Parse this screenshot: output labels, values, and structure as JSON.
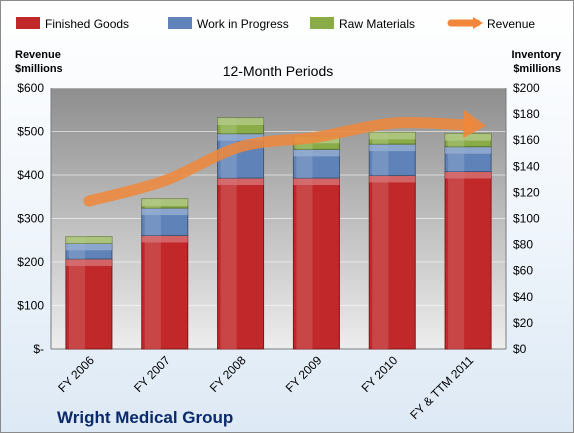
{
  "chart_data": {
    "type": "bar",
    "stacked": true,
    "subtitle": "12-Month Periods",
    "company": "Wright Medical Group",
    "categories": [
      "FY 2006",
      "FY 2007",
      "FY 2008",
      "FY 2009",
      "FY 2010",
      "FY & TTM 2011"
    ],
    "left_axis": {
      "title_line1": "Revenue",
      "title_line2": "$millions",
      "ylim": [
        0,
        600
      ],
      "ticks": [
        0,
        100,
        200,
        300,
        400,
        500,
        600
      ],
      "tick_labels": [
        "$-",
        "$100",
        "$200",
        "$300",
        "$400",
        "$500",
        "$600"
      ]
    },
    "right_axis": {
      "title_line1": "Inventory",
      "title_line2": "$millions",
      "ylim": [
        0,
        200
      ],
      "ticks": [
        0,
        20,
        40,
        60,
        80,
        100,
        120,
        140,
        160,
        180,
        200
      ],
      "tick_labels": [
        "$0",
        "$20",
        "$40",
        "$60",
        "$80",
        "$100",
        "$120",
        "$140",
        "$160",
        "$180",
        "$200"
      ]
    },
    "series": [
      {
        "name": "Finished Goods",
        "axis": "right",
        "kind": "bar",
        "color": "#c0282a",
        "values": [
          69,
          87,
          131,
          131,
          133,
          136
        ]
      },
      {
        "name": "Work in Progress",
        "axis": "right",
        "kind": "bar",
        "color": "#5f83b8",
        "values": [
          12,
          21,
          34,
          22,
          24,
          19
        ]
      },
      {
        "name": "Raw Materials",
        "axis": "right",
        "kind": "bar",
        "color": "#8aac48",
        "values": [
          5,
          7,
          12,
          10,
          9,
          10
        ]
      },
      {
        "name": "Revenue",
        "axis": "left",
        "kind": "line",
        "color": "#f0873a",
        "values": [
          340,
          387,
          465,
          487,
          519,
          515
        ]
      }
    ],
    "grid": true,
    "legend_position": "top"
  }
}
